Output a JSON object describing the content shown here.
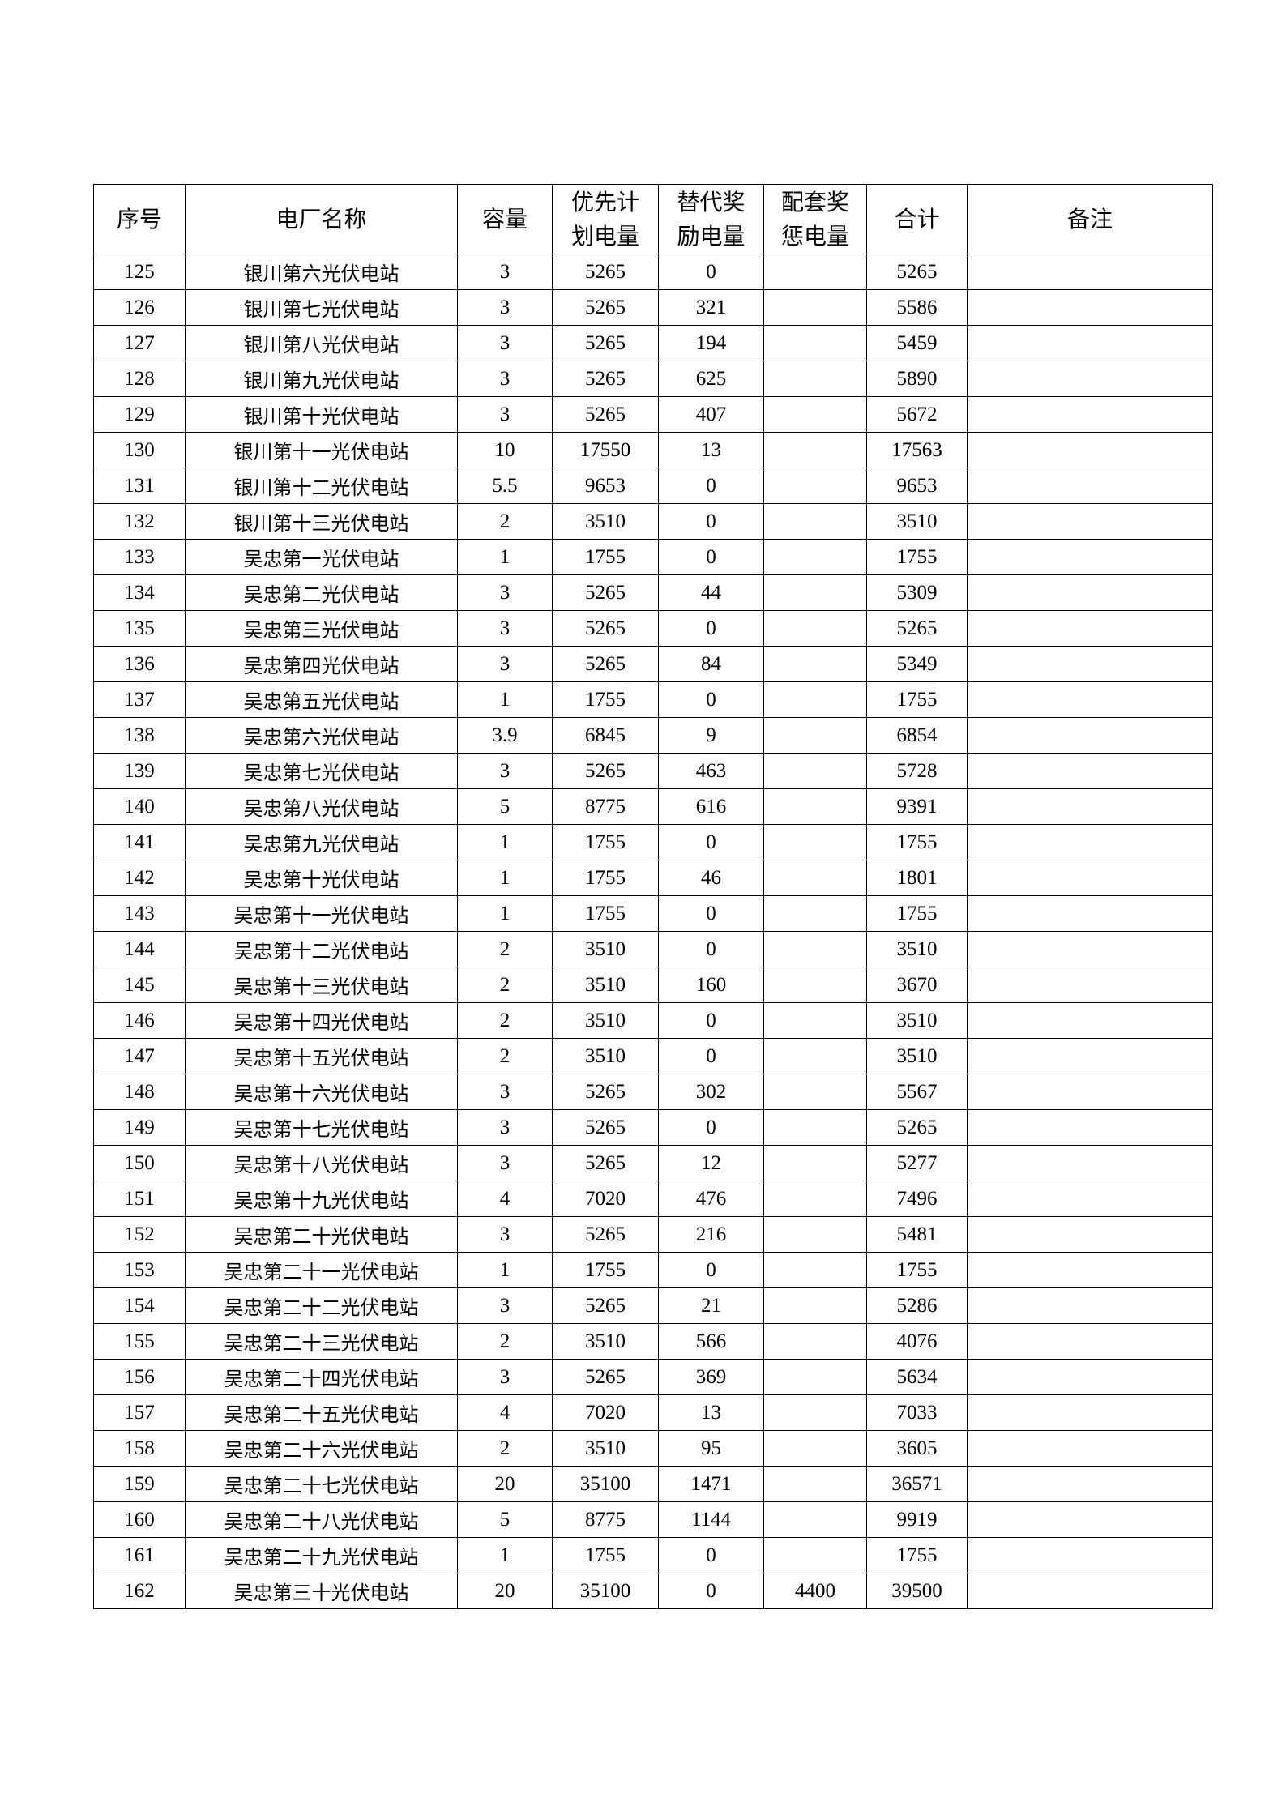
{
  "table": {
    "headers": [
      "序号",
      "电厂名称",
      "容量",
      "优先计\n划电量",
      "替代奖\n励电量",
      "配套奖\n惩电量",
      "合计",
      "备注"
    ],
    "rows": [
      [
        "125",
        "银川第六光伏电站",
        "3",
        "5265",
        "0",
        "",
        "5265",
        ""
      ],
      [
        "126",
        "银川第七光伏电站",
        "3",
        "5265",
        "321",
        "",
        "5586",
        ""
      ],
      [
        "127",
        "银川第八光伏电站",
        "3",
        "5265",
        "194",
        "",
        "5459",
        ""
      ],
      [
        "128",
        "银川第九光伏电站",
        "3",
        "5265",
        "625",
        "",
        "5890",
        ""
      ],
      [
        "129",
        "银川第十光伏电站",
        "3",
        "5265",
        "407",
        "",
        "5672",
        ""
      ],
      [
        "130",
        "银川第十一光伏电站",
        "10",
        "17550",
        "13",
        "",
        "17563",
        ""
      ],
      [
        "131",
        "银川第十二光伏电站",
        "5.5",
        "9653",
        "0",
        "",
        "9653",
        ""
      ],
      [
        "132",
        "银川第十三光伏电站",
        "2",
        "3510",
        "0",
        "",
        "3510",
        ""
      ],
      [
        "133",
        "吴忠第一光伏电站",
        "1",
        "1755",
        "0",
        "",
        "1755",
        ""
      ],
      [
        "134",
        "吴忠第二光伏电站",
        "3",
        "5265",
        "44",
        "",
        "5309",
        ""
      ],
      [
        "135",
        "吴忠第三光伏电站",
        "3",
        "5265",
        "0",
        "",
        "5265",
        ""
      ],
      [
        "136",
        "吴忠第四光伏电站",
        "3",
        "5265",
        "84",
        "",
        "5349",
        ""
      ],
      [
        "137",
        "吴忠第五光伏电站",
        "1",
        "1755",
        "0",
        "",
        "1755",
        ""
      ],
      [
        "138",
        "吴忠第六光伏电站",
        "3.9",
        "6845",
        "9",
        "",
        "6854",
        ""
      ],
      [
        "139",
        "吴忠第七光伏电站",
        "3",
        "5265",
        "463",
        "",
        "5728",
        ""
      ],
      [
        "140",
        "吴忠第八光伏电站",
        "5",
        "8775",
        "616",
        "",
        "9391",
        ""
      ],
      [
        "141",
        "吴忠第九光伏电站",
        "1",
        "1755",
        "0",
        "",
        "1755",
        ""
      ],
      [
        "142",
        "吴忠第十光伏电站",
        "1",
        "1755",
        "46",
        "",
        "1801",
        ""
      ],
      [
        "143",
        "吴忠第十一光伏电站",
        "1",
        "1755",
        "0",
        "",
        "1755",
        ""
      ],
      [
        "144",
        "吴忠第十二光伏电站",
        "2",
        "3510",
        "0",
        "",
        "3510",
        ""
      ],
      [
        "145",
        "吴忠第十三光伏电站",
        "2",
        "3510",
        "160",
        "",
        "3670",
        ""
      ],
      [
        "146",
        "吴忠第十四光伏电站",
        "2",
        "3510",
        "0",
        "",
        "3510",
        ""
      ],
      [
        "147",
        "吴忠第十五光伏电站",
        "2",
        "3510",
        "0",
        "",
        "3510",
        ""
      ],
      [
        "148",
        "吴忠第十六光伏电站",
        "3",
        "5265",
        "302",
        "",
        "5567",
        ""
      ],
      [
        "149",
        "吴忠第十七光伏电站",
        "3",
        "5265",
        "0",
        "",
        "5265",
        ""
      ],
      [
        "150",
        "吴忠第十八光伏电站",
        "3",
        "5265",
        "12",
        "",
        "5277",
        ""
      ],
      [
        "151",
        "吴忠第十九光伏电站",
        "4",
        "7020",
        "476",
        "",
        "7496",
        ""
      ],
      [
        "152",
        "吴忠第二十光伏电站",
        "3",
        "5265",
        "216",
        "",
        "5481",
        ""
      ],
      [
        "153",
        "吴忠第二十一光伏电站",
        "1",
        "1755",
        "0",
        "",
        "1755",
        ""
      ],
      [
        "154",
        "吴忠第二十二光伏电站",
        "3",
        "5265",
        "21",
        "",
        "5286",
        ""
      ],
      [
        "155",
        "吴忠第二十三光伏电站",
        "2",
        "3510",
        "566",
        "",
        "4076",
        ""
      ],
      [
        "156",
        "吴忠第二十四光伏电站",
        "3",
        "5265",
        "369",
        "",
        "5634",
        ""
      ],
      [
        "157",
        "吴忠第二十五光伏电站",
        "4",
        "7020",
        "13",
        "",
        "7033",
        ""
      ],
      [
        "158",
        "吴忠第二十六光伏电站",
        "2",
        "3510",
        "95",
        "",
        "3605",
        ""
      ],
      [
        "159",
        "吴忠第二十七光伏电站",
        "20",
        "35100",
        "1471",
        "",
        "36571",
        ""
      ],
      [
        "160",
        "吴忠第二十八光伏电站",
        "5",
        "8775",
        "1144",
        "",
        "9919",
        ""
      ],
      [
        "161",
        "吴忠第二十九光伏电站",
        "1",
        "1755",
        "0",
        "",
        "1755",
        ""
      ],
      [
        "162",
        "吴忠第三十光伏电站",
        "20",
        "35100",
        "0",
        "4400",
        "39500",
        ""
      ]
    ]
  }
}
